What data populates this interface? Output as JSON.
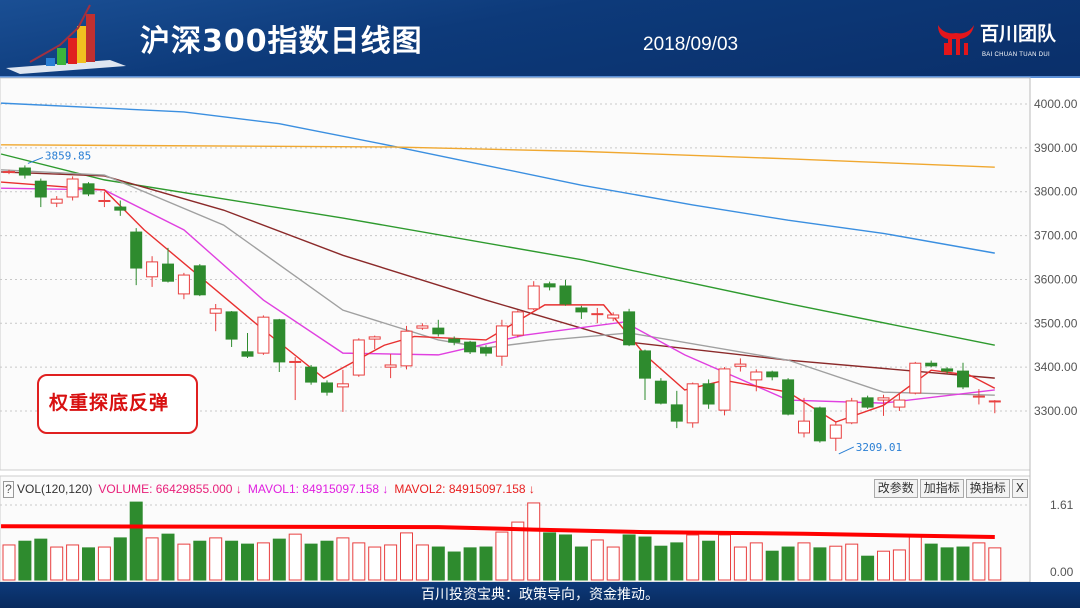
{
  "header": {
    "title": "沪深300指数日线图",
    "date": "2018/09/03",
    "brand_name": "百川团队",
    "brand_sub": "BAI CHUAN TUAN DUI",
    "brand_color": "#e3161b"
  },
  "annotation": {
    "text": "权重探底反弹",
    "color": "#d81010"
  },
  "volume_header": {
    "help": "?",
    "indicator": "VOL(120,120)",
    "volume": "VOLUME: 66429855.000 ↓",
    "mavol1": "MAVOL1: 84915097.158 ↓",
    "mavol2": "MAVOL2: 84915097.158 ↓",
    "buttons": [
      "改参数",
      "加指标",
      "换指标",
      "X"
    ]
  },
  "footer": {
    "text": "百川投资宝典：政策导向，资金推动。"
  },
  "colors": {
    "up": "#e84040",
    "down": "#2e8b2e",
    "header_bg": "#0d3a7a"
  },
  "chart_data": [
    {
      "type": "candlestick",
      "ylim": [
        3180,
        4060
      ],
      "yticks": [
        "4000.00",
        "3900.00",
        "3800.00",
        "3700.00",
        "3600.00",
        "3500.00",
        "3400.00",
        "3300.00"
      ],
      "grid": true,
      "annotations": [
        {
          "text": "3859.85",
          "index": 1,
          "value": 3859.85,
          "color": "#2a7fd4"
        },
        {
          "text": "3209.01",
          "index": 52,
          "value": 3209.01,
          "color": "#2a7fd4"
        }
      ],
      "ohlc": [
        [
          3845,
          3850,
          3840,
          3846
        ],
        [
          3854,
          3860,
          3830,
          3838
        ],
        [
          3824,
          3830,
          3765,
          3788
        ],
        [
          3774,
          3790,
          3765,
          3783
        ],
        [
          3788,
          3835,
          3780,
          3829
        ],
        [
          3818,
          3822,
          3790,
          3795
        ],
        [
          3779,
          3800,
          3765,
          3780
        ],
        [
          3765,
          3780,
          3745,
          3758
        ],
        [
          3708,
          3717,
          3587,
          3626
        ],
        [
          3606,
          3653,
          3583,
          3640
        ],
        [
          3635,
          3672,
          3593,
          3596
        ],
        [
          3567,
          3615,
          3555,
          3610
        ],
        [
          3631,
          3635,
          3562,
          3565
        ],
        [
          3523,
          3544,
          3482,
          3533
        ],
        [
          3526,
          3528,
          3446,
          3464
        ],
        [
          3435,
          3478,
          3421,
          3425
        ],
        [
          3432,
          3518,
          3428,
          3514
        ],
        [
          3508,
          3510,
          3389,
          3412
        ],
        [
          3412,
          3423,
          3325,
          3413
        ],
        [
          3400,
          3405,
          3360,
          3366
        ],
        [
          3364,
          3370,
          3335,
          3343
        ],
        [
          3355,
          3394,
          3298,
          3362
        ],
        [
          3382,
          3466,
          3378,
          3462
        ],
        [
          3464,
          3472,
          3441,
          3469
        ],
        [
          3400,
          3430,
          3375,
          3405
        ],
        [
          3403,
          3494,
          3395,
          3482
        ],
        [
          3489,
          3500,
          3485,
          3494
        ],
        [
          3489,
          3508,
          3470,
          3476
        ],
        [
          3464,
          3470,
          3450,
          3457
        ],
        [
          3457,
          3460,
          3430,
          3435
        ],
        [
          3444,
          3450,
          3425,
          3432
        ],
        [
          3425,
          3508,
          3403,
          3494
        ],
        [
          3473,
          3530,
          3468,
          3526
        ],
        [
          3533,
          3596,
          3530,
          3585
        ],
        [
          3590,
          3595,
          3575,
          3583
        ],
        [
          3585,
          3599,
          3540,
          3544
        ],
        [
          3535,
          3540,
          3510,
          3526
        ],
        [
          3521,
          3535,
          3500,
          3522
        ],
        [
          3512,
          3525,
          3505,
          3519
        ],
        [
          3526,
          3533,
          3448,
          3451
        ],
        [
          3437,
          3440,
          3325,
          3375
        ],
        [
          3368,
          3375,
          3315,
          3318
        ],
        [
          3314,
          3346,
          3261,
          3277
        ],
        [
          3273,
          3365,
          3262,
          3362
        ],
        [
          3362,
          3372,
          3305,
          3316
        ],
        [
          3302,
          3400,
          3290,
          3396
        ],
        [
          3402,
          3420,
          3390,
          3407
        ],
        [
          3371,
          3395,
          3345,
          3389
        ],
        [
          3389,
          3392,
          3370,
          3378
        ],
        [
          3371,
          3375,
          3290,
          3293
        ],
        [
          3250,
          3330,
          3240,
          3277
        ],
        [
          3307,
          3310,
          3228,
          3232
        ],
        [
          3238,
          3275,
          3209.01,
          3268
        ],
        [
          3273,
          3330,
          3270,
          3323
        ],
        [
          3330,
          3335,
          3305,
          3309
        ],
        [
          3325,
          3337,
          3289,
          3330
        ],
        [
          3309,
          3340,
          3300,
          3325
        ],
        [
          3341,
          3412,
          3338,
          3409
        ],
        [
          3409,
          3415,
          3400,
          3403
        ],
        [
          3396,
          3400,
          3385,
          3391
        ],
        [
          3391,
          3410,
          3350,
          3355
        ],
        [
          3332,
          3350,
          3315,
          3334
        ],
        [
          3321,
          3325,
          3295,
          3323
        ]
      ],
      "moving_averages": [
        {
          "color": "#3b8fe0",
          "points": [
            [
              -0.5,
              4002
            ],
            [
              11,
              3982
            ],
            [
              17,
              3955
            ],
            [
              24,
              3905
            ],
            [
              30,
              3860
            ],
            [
              36,
              3815
            ],
            [
              43,
              3770
            ],
            [
              49,
              3735
            ],
            [
              55,
              3705
            ],
            [
              62,
              3660
            ]
          ]
        },
        {
          "color": "#f0a830",
          "points": [
            [
              -0.5,
              3907
            ],
            [
              24,
              3902
            ],
            [
              36,
              3892
            ],
            [
              49,
              3875
            ],
            [
              62,
              3856
            ]
          ]
        },
        {
          "color": "#2e9a2e",
          "points": [
            [
              -0.5,
              3886
            ],
            [
              6,
              3827
            ],
            [
              21,
              3740
            ],
            [
              36,
              3645
            ],
            [
              49,
              3545
            ],
            [
              62,
              3450
            ]
          ]
        },
        {
          "color": "#8b2a2a",
          "points": [
            [
              -0.5,
              3845
            ],
            [
              6,
              3836
            ],
            [
              13.5,
              3758
            ],
            [
              21,
              3655
            ],
            [
              30,
              3553
            ],
            [
              39,
              3457
            ],
            [
              49,
              3416
            ],
            [
              62,
              3375
            ]
          ]
        },
        {
          "color": "#a0a0a0",
          "points": [
            [
              -0.5,
              3850
            ],
            [
              6,
              3838
            ],
            [
              13.5,
              3724
            ],
            [
              21,
              3530
            ],
            [
              27,
              3462
            ],
            [
              30,
              3444
            ],
            [
              34,
              3462
            ],
            [
              39,
              3478
            ],
            [
              49,
              3416
            ],
            [
              55,
              3343
            ],
            [
              62,
              3336
            ]
          ]
        },
        {
          "color": "#e040e0",
          "points": [
            [
              -0.5,
              3808
            ],
            [
              6,
              3804
            ],
            [
              11,
              3713
            ],
            [
              16,
              3553
            ],
            [
              21,
              3432
            ],
            [
              27,
              3428
            ],
            [
              32.4,
              3473
            ],
            [
              38.7,
              3503
            ],
            [
              42.5,
              3428
            ],
            [
              49,
              3325
            ],
            [
              55,
              3318
            ],
            [
              62,
              3348
            ]
          ]
        },
        {
          "color": "#e83030",
          "points": [
            [
              -0.5,
              3822
            ],
            [
              6,
              3804
            ],
            [
              8.5,
              3713
            ],
            [
              16,
              3485
            ],
            [
              19.8,
              3375
            ],
            [
              23.6,
              3450
            ],
            [
              25.5,
              3470
            ],
            [
              30,
              3462
            ],
            [
              33.7,
              3542
            ],
            [
              37.4,
              3542
            ],
            [
              40,
              3428
            ],
            [
              42.5,
              3348
            ],
            [
              45,
              3370
            ],
            [
              49,
              3343
            ],
            [
              52,
              3275
            ],
            [
              55,
              3313
            ],
            [
              58,
              3393
            ],
            [
              60.4,
              3382
            ],
            [
              62,
              3352
            ]
          ]
        }
      ]
    },
    {
      "type": "bar",
      "ylim": [
        0,
        1.61
      ],
      "yticks": [
        "1.61",
        "0.00"
      ],
      "values": [
        0.65,
        0.74,
        0.79,
        0.6,
        0.65,
        0.58,
        0.6,
        0.82,
        1.68,
        0.82,
        0.91,
        0.67,
        0.74,
        0.82,
        0.74,
        0.67,
        0.7,
        0.79,
        0.91,
        0.67,
        0.74,
        0.82,
        0.7,
        0.6,
        0.65,
        0.94,
        0.65,
        0.6,
        0.48,
        0.58,
        0.6,
        0.96,
        1.2,
        1.66,
        0.94,
        0.89,
        0.6,
        0.77,
        0.6,
        0.89,
        0.84,
        0.62,
        0.7,
        0.89,
        0.74,
        0.89,
        0.6,
        0.7,
        0.5,
        0.6,
        0.7,
        0.58,
        0.62,
        0.67,
        0.38,
        0.5,
        0.53,
        0.89,
        0.67,
        0.58,
        0.6,
        0.7,
        0.58
      ],
      "mavol": {
        "color": "#ff0000",
        "points": [
          [
            -0.5,
            1.1
          ],
          [
            27,
            1.08
          ],
          [
            33,
            1.02
          ],
          [
            40,
            0.96
          ],
          [
            50,
            0.92
          ],
          [
            62,
            0.84
          ]
        ]
      }
    }
  ]
}
